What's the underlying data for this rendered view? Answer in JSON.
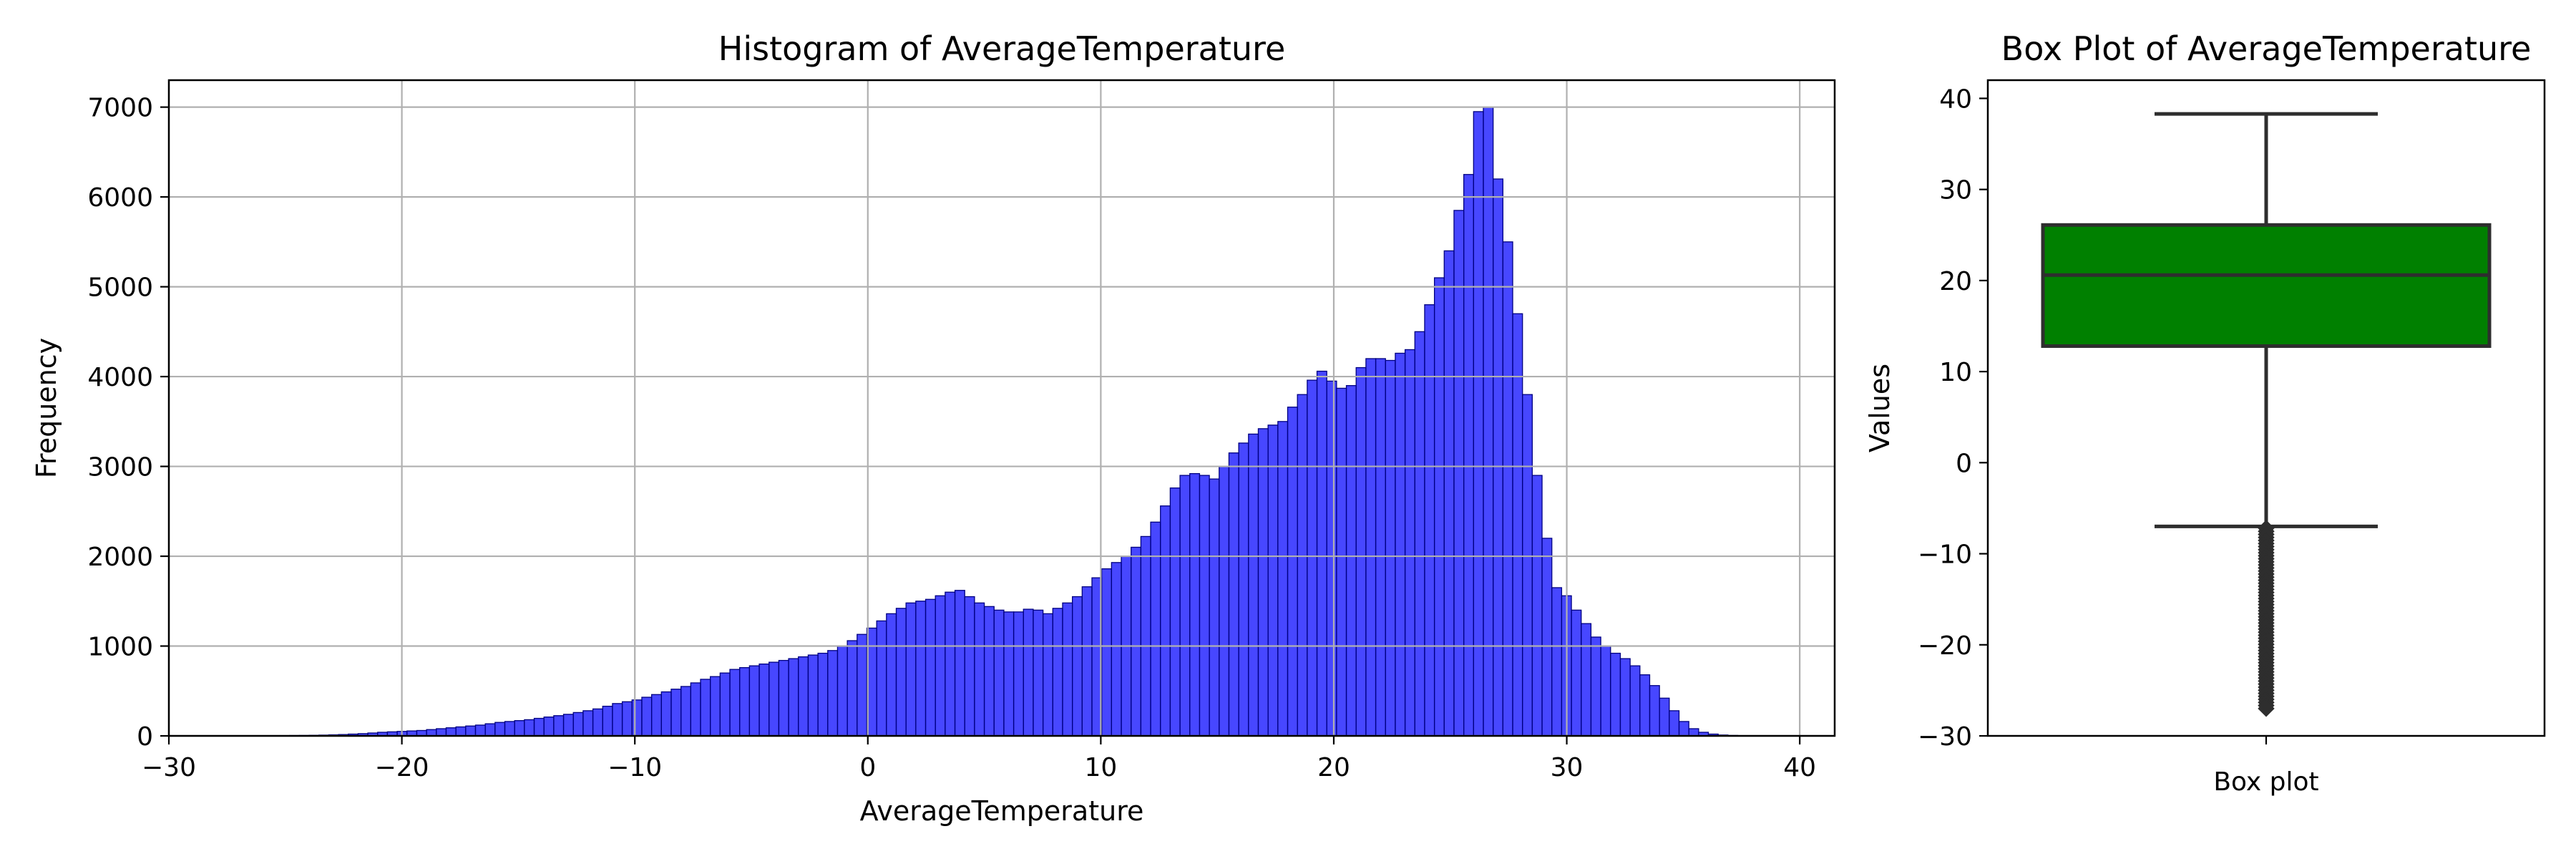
{
  "chart_data": [
    {
      "type": "bar",
      "title": "Histogram of AverageTemperature",
      "xlabel": "AverageTemperature",
      "ylabel": "Frequency",
      "xlim": [
        -30,
        41.5
      ],
      "ylim": [
        0,
        7300
      ],
      "xticks": [
        -30,
        -20,
        -10,
        0,
        10,
        20,
        30,
        40
      ],
      "yticks": [
        0,
        1000,
        2000,
        3000,
        4000,
        5000,
        6000,
        7000
      ],
      "grid": true,
      "bar_color": "#0000ff",
      "bar_edge_color": "#000080",
      "bin_start": -26.5,
      "bin_width": 0.42,
      "values": [
        1,
        2,
        3,
        3,
        4,
        5,
        7,
        9,
        12,
        15,
        20,
        25,
        32,
        40,
        45,
        50,
        55,
        60,
        70,
        80,
        90,
        100,
        110,
        120,
        135,
        150,
        160,
        170,
        180,
        195,
        210,
        225,
        240,
        260,
        280,
        300,
        330,
        360,
        380,
        400,
        430,
        460,
        490,
        520,
        550,
        590,
        630,
        660,
        700,
        740,
        760,
        780,
        800,
        820,
        840,
        860,
        880,
        900,
        920,
        950,
        1000,
        1060,
        1130,
        1200,
        1280,
        1360,
        1420,
        1480,
        1500,
        1520,
        1560,
        1600,
        1620,
        1550,
        1480,
        1440,
        1400,
        1380,
        1380,
        1410,
        1400,
        1360,
        1420,
        1480,
        1550,
        1660,
        1760,
        1860,
        1930,
        2000,
        2100,
        2220,
        2380,
        2560,
        2760,
        2900,
        2920,
        2900,
        2860,
        3000,
        3150,
        3260,
        3360,
        3420,
        3460,
        3500,
        3660,
        3800,
        3960,
        4060,
        3950,
        3870,
        3900,
        4100,
        4200,
        4200,
        4180,
        4260,
        4300,
        4500,
        4800,
        5100,
        5400,
        5850,
        6250,
        6950,
        7000,
        6200,
        5500,
        4700,
        3800,
        2900,
        2200,
        1650,
        1560,
        1400,
        1250,
        1100,
        1000,
        920,
        860,
        780,
        680,
        560,
        420,
        280,
        160,
        80,
        40,
        20,
        10,
        5,
        2
      ]
    },
    {
      "type": "box",
      "title": "Box Plot of AverageTemperature",
      "ylabel": "Values",
      "category": "Box plot",
      "ylim": [
        -30,
        42
      ],
      "yticks": [
        -30,
        -20,
        -10,
        0,
        10,
        20,
        30,
        40
      ],
      "box_color": "#008000",
      "whisker_low": -7.0,
      "q1": 12.8,
      "median": 20.6,
      "q3": 26.1,
      "whisker_high": 38.3,
      "outliers_range": [
        -27.0,
        -7.2
      ]
    }
  ]
}
